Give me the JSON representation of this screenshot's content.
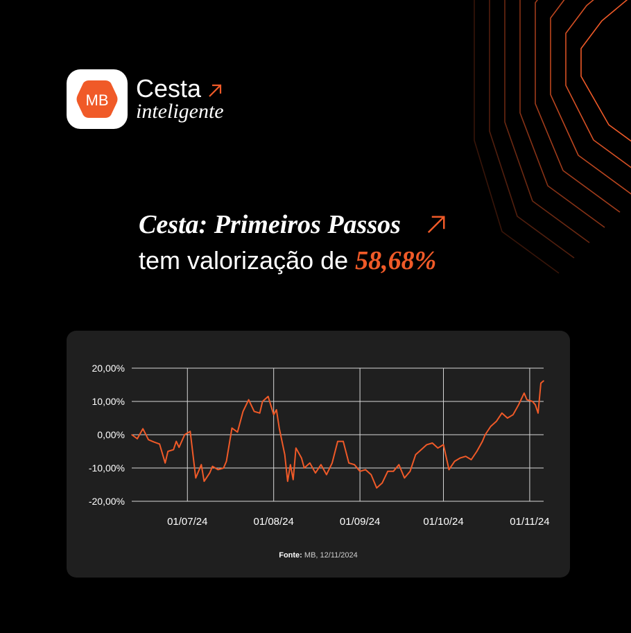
{
  "brand": {
    "badge": "MB",
    "name": "Cesta",
    "tagline": "inteligente",
    "accent_color": "#f05a28"
  },
  "headline": {
    "line1": "Cesta: Primeiros Passos",
    "line2_prefix": "tem valorização de",
    "value": "58,68%",
    "icon": "arrow-up-right-icon"
  },
  "source": {
    "label": "Fonte:",
    "text": "MB, 12/11/2024"
  },
  "chart_data": {
    "type": "line",
    "title": "",
    "xlabel": "",
    "ylabel": "",
    "ylim": [
      -20,
      20
    ],
    "y_ticks": [
      20,
      10,
      0,
      -10,
      -20
    ],
    "y_tick_labels": [
      "20,00%",
      "10,00%",
      "0,00%",
      "-10,00%",
      "-20,00%"
    ],
    "x_ticks": [
      "01/07/24",
      "01/08/24",
      "01/09/24",
      "01/10/24",
      "01/11/24"
    ],
    "x_range": [
      "11/06/24",
      "06/11/24"
    ],
    "grid": true,
    "line_color": "#f05a28",
    "series": [
      {
        "name": "",
        "points": [
          [
            "11/06/24",
            0.0
          ],
          [
            "13/06/24",
            -1.2
          ],
          [
            "15/06/24",
            1.8
          ],
          [
            "17/06/24",
            -1.5
          ],
          [
            "19/06/24",
            -2.2
          ],
          [
            "21/06/24",
            -2.8
          ],
          [
            "23/06/24",
            -8.5
          ],
          [
            "24/06/24",
            -5.0
          ],
          [
            "26/06/24",
            -4.5
          ],
          [
            "27/06/24",
            -2.0
          ],
          [
            "28/06/24",
            -3.8
          ],
          [
            "30/06/24",
            0.0
          ],
          [
            "02/07/24",
            1.0
          ],
          [
            "04/07/24",
            -13.0
          ],
          [
            "06/07/24",
            -9.0
          ],
          [
            "07/07/24",
            -14.0
          ],
          [
            "09/07/24",
            -11.5
          ],
          [
            "10/07/24",
            -9.5
          ],
          [
            "12/07/24",
            -10.5
          ],
          [
            "14/07/24",
            -10.0
          ],
          [
            "15/07/24",
            -8.0
          ],
          [
            "17/07/24",
            2.0
          ],
          [
            "19/07/24",
            0.8
          ],
          [
            "21/07/24",
            7.0
          ],
          [
            "23/07/24",
            10.5
          ],
          [
            "25/07/24",
            7.0
          ],
          [
            "27/07/24",
            6.5
          ],
          [
            "28/07/24",
            10.0
          ],
          [
            "30/07/24",
            11.5
          ],
          [
            "01/08/24",
            6.0
          ],
          [
            "02/08/24",
            7.5
          ],
          [
            "03/08/24",
            2.0
          ],
          [
            "05/08/24",
            -6.0
          ],
          [
            "06/08/24",
            -14.0
          ],
          [
            "07/08/24",
            -9.0
          ],
          [
            "08/08/24",
            -13.5
          ],
          [
            "09/08/24",
            -4.0
          ],
          [
            "11/08/24",
            -7.0
          ],
          [
            "12/08/24",
            -10.0
          ],
          [
            "14/08/24",
            -8.5
          ],
          [
            "16/08/24",
            -11.5
          ],
          [
            "18/08/24",
            -9.0
          ],
          [
            "20/08/24",
            -12.0
          ],
          [
            "22/08/24",
            -8.5
          ],
          [
            "24/08/24",
            -2.0
          ],
          [
            "26/08/24",
            -2.0
          ],
          [
            "28/08/24",
            -8.5
          ],
          [
            "30/08/24",
            -9.0
          ],
          [
            "01/09/24",
            -11.0
          ],
          [
            "03/09/24",
            -10.5
          ],
          [
            "05/09/24",
            -12.0
          ],
          [
            "07/09/24",
            -16.0
          ],
          [
            "09/09/24",
            -14.5
          ],
          [
            "11/09/24",
            -11.0
          ],
          [
            "13/09/24",
            -11.0
          ],
          [
            "15/09/24",
            -9.0
          ],
          [
            "17/09/24",
            -13.0
          ],
          [
            "19/09/24",
            -11.0
          ],
          [
            "21/09/24",
            -6.0
          ],
          [
            "23/09/24",
            -4.5
          ],
          [
            "25/09/24",
            -3.0
          ],
          [
            "27/09/24",
            -2.5
          ],
          [
            "29/09/24",
            -4.0
          ],
          [
            "01/10/24",
            -3.0
          ],
          [
            "03/10/24",
            -10.5
          ],
          [
            "05/10/24",
            -8.0
          ],
          [
            "07/10/24",
            -7.0
          ],
          [
            "09/10/24",
            -6.5
          ],
          [
            "11/10/24",
            -7.5
          ],
          [
            "13/10/24",
            -5.0
          ],
          [
            "15/10/24",
            -2.0
          ],
          [
            "16/10/24",
            0.0
          ],
          [
            "18/10/24",
            2.5
          ],
          [
            "20/10/24",
            4.0
          ],
          [
            "22/10/24",
            6.5
          ],
          [
            "24/10/24",
            5.0
          ],
          [
            "26/10/24",
            6.0
          ],
          [
            "28/10/24",
            9.0
          ],
          [
            "30/10/24",
            12.5
          ],
          [
            "31/10/24",
            10.5
          ],
          [
            "02/11/24",
            10.0
          ],
          [
            "03/11/24",
            9.0
          ],
          [
            "04/11/24",
            6.5
          ],
          [
            "05/11/24",
            15.5
          ],
          [
            "06/11/24",
            16.2
          ]
        ]
      }
    ]
  }
}
